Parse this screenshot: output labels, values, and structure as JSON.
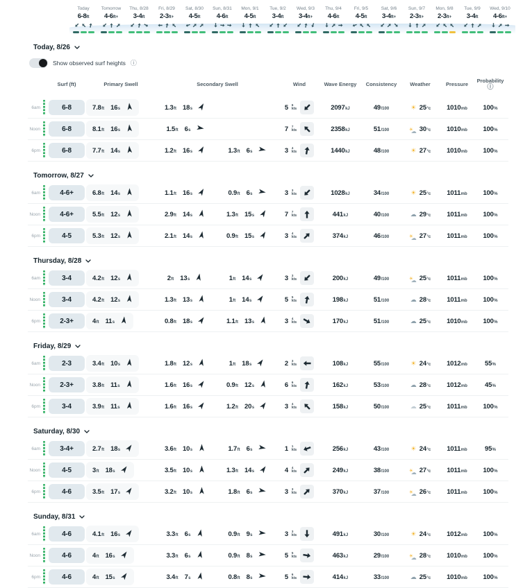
{
  "strip": {
    "days": [
      {
        "label": "Today",
        "h": "6-8",
        "hu": "ft",
        "arrows": [
          225,
          315,
          10
        ],
        "dashes": [
          "dark",
          "green",
          "green"
        ]
      },
      {
        "label": "Tomorrow",
        "h": "4-6",
        "hu": "ft+",
        "arrows": [
          225,
          0,
          45
        ],
        "dashes": [
          "dark",
          "green",
          "green"
        ]
      },
      {
        "label": "Thu, 8/28",
        "h": "3-4",
        "hu": "ft",
        "arrows": [
          225,
          10,
          120
        ],
        "dashes": [
          "green",
          "green",
          "green"
        ]
      },
      {
        "label": "Fri, 8/29",
        "h": "2-3",
        "hu": "ft+",
        "arrows": [
          270,
          10,
          315
        ],
        "dashes": [
          "green",
          "green",
          "green"
        ]
      },
      {
        "label": "Sat, 8/30",
        "h": "4-5",
        "hu": "ft",
        "arrows": [
          250,
          45,
          45
        ],
        "dashes": [
          "dark",
          "green",
          "green"
        ]
      },
      {
        "label": "Sun, 8/31",
        "h": "4-6",
        "hu": "ft",
        "arrows": [
          180,
          95,
          95
        ],
        "dashes": [
          "dark",
          "green",
          "green"
        ]
      },
      {
        "label": "Mon, 9/1",
        "h": "4-5",
        "hu": "ft",
        "arrows": [
          180,
          0,
          315
        ],
        "dashes": [
          "dark",
          "green",
          "green"
        ]
      },
      {
        "label": "Tue, 9/2",
        "h": "3-4",
        "hu": "ft",
        "arrows": [
          225,
          0,
          225
        ],
        "dashes": [
          "dark",
          "green",
          "green"
        ]
      },
      {
        "label": "Wed, 9/3",
        "h": "3-4",
        "hu": "ft+",
        "arrows": [
          225,
          10,
          200
        ],
        "dashes": [
          "dark",
          "green",
          "green"
        ]
      },
      {
        "label": "Thu, 9/4",
        "h": "4-6",
        "hu": "ft",
        "arrows": [
          180,
          45,
          90
        ],
        "dashes": [
          "dark",
          "green",
          "green"
        ]
      },
      {
        "label": "Fri, 9/5",
        "h": "4-5",
        "hu": "ft",
        "arrows": [
          250,
          315,
          315
        ],
        "dashes": [
          "dark",
          "green",
          "green"
        ]
      },
      {
        "label": "Sat, 9/6",
        "h": "3-4",
        "hu": "ft+",
        "arrows": [
          225,
          45,
          135
        ],
        "dashes": [
          "dark",
          "green",
          "green"
        ]
      },
      {
        "label": "Sun, 9/7",
        "h": "2-3",
        "hu": "ft+",
        "arrows": [
          180,
          0,
          45
        ],
        "dashes": [
          "green",
          "green",
          "green"
        ]
      },
      {
        "label": "Mon, 9/8",
        "h": "2-3",
        "hu": "ft+",
        "arrows": [
          225,
          315,
          315
        ],
        "dashes": [
          "green",
          "green",
          "yellow"
        ]
      },
      {
        "label": "Tue, 9/9",
        "h": "3-4",
        "hu": "ft",
        "arrows": [
          225,
          0,
          45
        ],
        "dashes": [
          "green",
          "green",
          "green"
        ]
      },
      {
        "label": "Wed, 9/10",
        "h": "4-6",
        "hu": "ft+",
        "arrows": [
          180,
          45,
          90
        ],
        "dashes": [
          "dark",
          "green",
          "green"
        ]
      }
    ]
  },
  "toggle": {
    "label": "Show observed surf heights"
  },
  "columns": {
    "surf": "Surf (ft)",
    "primary": "Primary Swell",
    "secondary": "Secondary Swell",
    "wind": "Wind",
    "energy": "Wave Energy",
    "consistency": "Consistency",
    "weather": "Weather",
    "pressure": "Pressure",
    "probability": "Probability"
  },
  "units": {
    "ft": "ft",
    "s": "s",
    "kts": "kts",
    "kj": "kJ",
    "per100": "/100",
    "deg": "°c",
    "mb": "mb",
    "pct": "%"
  },
  "colors": {
    "dash_green": "#41bd79",
    "dash_dark": "#2f6a63",
    "dash_yellow": "#f1c13e",
    "observed_green": "#35b267",
    "sun": "#f3b52f",
    "cloud": "#8da0ab",
    "surf_chip_bg": "#e1e9ee",
    "swell_chip_bg": "#f6f8f9",
    "wind_box_bg": "#eef1f3"
  },
  "sections": [
    {
      "title": "Today, 8/26",
      "rows": [
        {
          "time": "6am",
          "surf": "6-8",
          "swells": [
            {
              "h": "7.8",
              "p": "16",
              "dir": 355
            },
            {
              "h": "1.3",
              "p": "18",
              "dir": 30
            },
            null
          ],
          "wind": {
            "v": "5",
            "g": "6",
            "dir": 225
          },
          "energy": "2097",
          "cons": "49",
          "wx": "sun",
          "temp": "25",
          "press": "1010",
          "prob": "100"
        },
        {
          "time": "Noon",
          "surf": "6-8",
          "swells": [
            {
              "h": "8.1",
              "p": "16",
              "dir": 355
            },
            {
              "h": "1.5",
              "p": "6",
              "dir": 100
            },
            null
          ],
          "wind": {
            "v": "7",
            "g": "7",
            "dir": 315
          },
          "energy": "2358",
          "cons": "51",
          "wx": "partly",
          "temp": "30",
          "press": "1010",
          "prob": "100"
        },
        {
          "time": "6pm",
          "surf": "6-8",
          "swells": [
            {
              "h": "7.7",
              "p": "14",
              "dir": 355
            },
            {
              "h": "1.2",
              "p": "16",
              "dir": 30
            },
            {
              "h": "1.3",
              "p": "6",
              "dir": 100
            }
          ],
          "wind": {
            "v": "3",
            "g": "4",
            "dir": 10
          },
          "energy": "1440",
          "cons": "48",
          "wx": "sun",
          "temp": "27",
          "press": "1010",
          "prob": "100"
        }
      ]
    },
    {
      "title": "Tomorrow, 8/27",
      "rows": [
        {
          "time": "6am",
          "surf": "4-6+",
          "swells": [
            {
              "h": "6.8",
              "p": "14",
              "dir": 0
            },
            {
              "h": "1.1",
              "p": "16",
              "dir": 30
            },
            {
              "h": "0.9",
              "p": "6",
              "dir": 100
            }
          ],
          "wind": {
            "v": "3",
            "g": "3",
            "dir": 225
          },
          "energy": "1028",
          "cons": "34",
          "wx": "sun",
          "temp": "25",
          "press": "1011",
          "prob": "100"
        },
        {
          "time": "Noon",
          "surf": "4-6+",
          "swells": [
            {
              "h": "5.5",
              "p": "12",
              "dir": 0
            },
            {
              "h": "2.9",
              "p": "14",
              "dir": 10
            },
            {
              "h": "1.3",
              "p": "15",
              "dir": 30
            }
          ],
          "wind": {
            "v": "7",
            "g": "7",
            "dir": 0
          },
          "energy": "441",
          "cons": "40",
          "wx": "cloud",
          "temp": "29",
          "press": "1011",
          "prob": "100"
        },
        {
          "time": "6pm",
          "surf": "4-5",
          "swells": [
            {
              "h": "5.3",
              "p": "12",
              "dir": 0
            },
            {
              "h": "2.1",
              "p": "14",
              "dir": 10
            },
            {
              "h": "0.9",
              "p": "15",
              "dir": 30
            }
          ],
          "wind": {
            "v": "3",
            "g": "4",
            "dir": 45
          },
          "energy": "374",
          "cons": "46",
          "wx": "partly",
          "temp": "27",
          "press": "1011",
          "prob": "100"
        }
      ]
    },
    {
      "title": "Thursday, 8/28",
      "rows": [
        {
          "time": "6am",
          "surf": "3-4",
          "swells": [
            {
              "h": "4.2",
              "p": "12",
              "dir": 5
            },
            {
              "h": "2",
              "p": "13",
              "dir": 10
            },
            {
              "h": "1",
              "p": "14",
              "dir": 35
            }
          ],
          "wind": {
            "v": "3",
            "g": "3",
            "dir": 225
          },
          "energy": "200",
          "cons": "49",
          "wx": "partly",
          "temp": "25",
          "press": "1011",
          "prob": "100"
        },
        {
          "time": "Noon",
          "surf": "3-4",
          "swells": [
            {
              "h": "4.2",
              "p": "12",
              "dir": 5
            },
            {
              "h": "1.3",
              "p": "13",
              "dir": 10
            },
            {
              "h": "1",
              "p": "14",
              "dir": 35
            }
          ],
          "wind": {
            "v": "5",
            "g": "5",
            "dir": 10
          },
          "energy": "198",
          "cons": "51",
          "wx": "cloud",
          "temp": "28",
          "press": "1011",
          "prob": "100"
        },
        {
          "time": "6pm",
          "surf": "2-3+",
          "swells": [
            {
              "h": "4",
              "p": "11",
              "dir": 5
            },
            {
              "h": "0.8",
              "p": "18",
              "dir": 35
            },
            {
              "h": "1.1",
              "p": "13",
              "dir": 10
            }
          ],
          "wind": {
            "v": "3",
            "g": "4",
            "dir": 120
          },
          "energy": "170",
          "cons": "51",
          "wx": "cloud",
          "temp": "25",
          "press": "1010",
          "prob": "100"
        }
      ]
    },
    {
      "title": "Friday, 8/29",
      "rows": [
        {
          "time": "6am",
          "surf": "2-3",
          "swells": [
            {
              "h": "3.4",
              "p": "10",
              "dir": 5
            },
            {
              "h": "1.8",
              "p": "12",
              "dir": 10
            },
            {
              "h": "1",
              "p": "18",
              "dir": 35
            }
          ],
          "wind": {
            "v": "2",
            "g": "3",
            "dir": 270
          },
          "energy": "108",
          "cons": "55",
          "wx": "sun",
          "temp": "24",
          "press": "1012",
          "prob": "55"
        },
        {
          "time": "Noon",
          "surf": "2-3+",
          "swells": [
            {
              "h": "3.8",
              "p": "11",
              "dir": 5
            },
            {
              "h": "1.6",
              "p": "16",
              "dir": 35
            },
            {
              "h": "0.9",
              "p": "12",
              "dir": 10
            }
          ],
          "wind": {
            "v": "6",
            "g": "6",
            "dir": 10
          },
          "energy": "162",
          "cons": "53",
          "wx": "cloud",
          "temp": "28",
          "press": "1012",
          "prob": "45"
        },
        {
          "time": "6pm",
          "surf": "3-4",
          "swells": [
            {
              "h": "3.9",
              "p": "11",
              "dir": 5
            },
            {
              "h": "1.6",
              "p": "16",
              "dir": 35
            },
            {
              "h": "1.2",
              "p": "20",
              "dir": 35
            }
          ],
          "wind": {
            "v": "3",
            "g": "4",
            "dir": 315
          },
          "energy": "158",
          "cons": "50",
          "wx": "cloud_outline",
          "temp": "25",
          "press": "1011",
          "prob": "100"
        }
      ]
    },
    {
      "title": "Saturday, 8/30",
      "rows": [
        {
          "time": "6am",
          "surf": "3-4+",
          "swells": [
            {
              "h": "2.7",
              "p": "18",
              "dir": 35
            },
            {
              "h": "3.6",
              "p": "10",
              "dir": 0
            },
            {
              "h": "1.7",
              "p": "6",
              "dir": 100
            }
          ],
          "wind": {
            "v": "1",
            "g": "1",
            "dir": 250
          },
          "energy": "256",
          "cons": "43",
          "wx": "sun",
          "temp": "24",
          "press": "1011",
          "prob": "95"
        },
        {
          "time": "Noon",
          "surf": "4-5",
          "swells": [
            {
              "h": "3",
              "p": "18",
              "dir": 35
            },
            {
              "h": "3.5",
              "p": "10",
              "dir": 0
            },
            {
              "h": "1.3",
              "p": "14",
              "dir": 35
            }
          ],
          "wind": {
            "v": "4",
            "g": "4",
            "dir": 45
          },
          "energy": "249",
          "cons": "38",
          "wx": "partly",
          "temp": "27",
          "press": "1011",
          "prob": "100"
        },
        {
          "time": "6pm",
          "surf": "4-6",
          "swells": [
            {
              "h": "3.5",
              "p": "17",
              "dir": 35
            },
            {
              "h": "3.2",
              "p": "10",
              "dir": 0
            },
            {
              "h": "1.8",
              "p": "6",
              "dir": 100
            }
          ],
          "wind": {
            "v": "3",
            "g": "3",
            "dir": 45
          },
          "energy": "370",
          "cons": "37",
          "wx": "partly",
          "temp": "26",
          "press": "1011",
          "prob": "100"
        }
      ]
    },
    {
      "title": "Sunday, 8/31",
      "rows": [
        {
          "time": "6am",
          "surf": "4-6",
          "swells": [
            {
              "h": "4.1",
              "p": "16",
              "dir": 35
            },
            {
              "h": "3.3",
              "p": "6",
              "dir": 10
            },
            {
              "h": "0.9",
              "p": "9",
              "dir": 95
            }
          ],
          "wind": {
            "v": "3",
            "g": "3",
            "dir": 180
          },
          "energy": "491",
          "cons": "30",
          "wx": "sun",
          "temp": "24",
          "press": "1012",
          "prob": "100"
        },
        {
          "time": "Noon",
          "surf": "4-6",
          "swells": [
            {
              "h": "4",
              "p": "16",
              "dir": 35
            },
            {
              "h": "3.3",
              "p": "6",
              "dir": 10
            },
            {
              "h": "0.9",
              "p": "8",
              "dir": 95
            }
          ],
          "wind": {
            "v": "5",
            "g": "5",
            "dir": 100
          },
          "energy": "463",
          "cons": "29",
          "wx": "partly",
          "temp": "28",
          "press": "1010",
          "prob": "100"
        },
        {
          "time": "6pm",
          "surf": "4-6",
          "swells": [
            {
              "h": "4",
              "p": "15",
              "dir": 35
            },
            {
              "h": "3.4",
              "p": "7",
              "dir": 10
            },
            {
              "h": "0.8",
              "p": "8",
              "dir": 95
            }
          ],
          "wind": {
            "v": "5",
            "g": "6",
            "dir": 95
          },
          "energy": "414",
          "cons": "33",
          "wx": "cloud",
          "temp": "25",
          "press": "1010",
          "prob": "100"
        }
      ]
    }
  ]
}
